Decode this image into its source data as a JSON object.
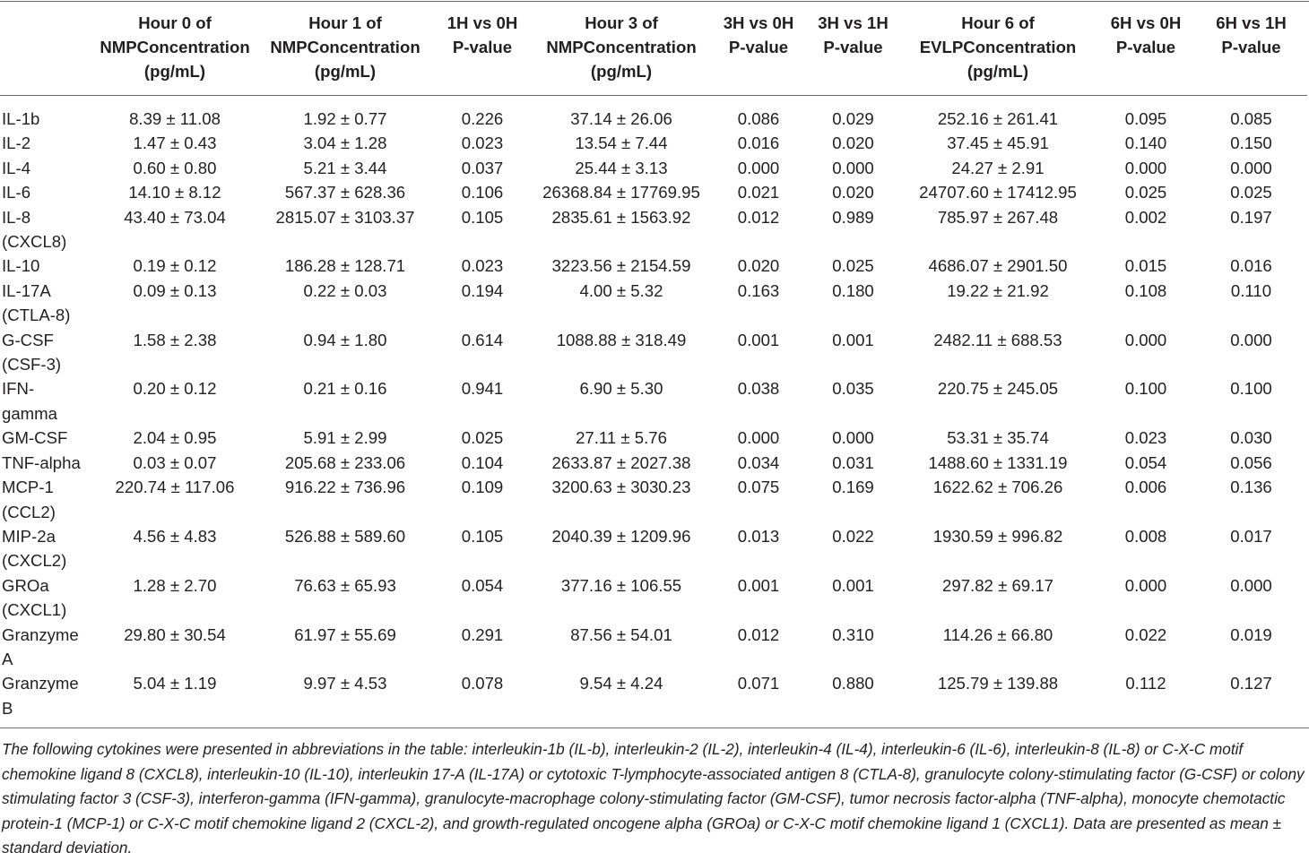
{
  "table": {
    "columns": [
      {
        "line1": "",
        "line2": "",
        "line3": ""
      },
      {
        "line1": "Hour 0 of",
        "line2": "NMPConcentration",
        "line3": "(pg/mL)"
      },
      {
        "line1": "Hour 1 of",
        "line2": "NMPConcentration",
        "line3": "(pg/mL)"
      },
      {
        "line1": "1H vs 0H",
        "line2": "P-value",
        "line3": ""
      },
      {
        "line1": "Hour 3 of",
        "line2": "NMPConcentration",
        "line3": "(pg/mL)"
      },
      {
        "line1": "3H vs 0H",
        "line2": "P-value",
        "line3": ""
      },
      {
        "line1": "3H vs 1H",
        "line2": "P-value",
        "line3": ""
      },
      {
        "line1": "Hour 6 of",
        "line2": "EVLPConcentration",
        "line3": "(pg/mL)"
      },
      {
        "line1": "6H vs 0H",
        "line2": "P-value",
        "line3": ""
      },
      {
        "line1": "6H vs 1H",
        "line2": "P-value",
        "line3": ""
      }
    ],
    "rows": [
      {
        "name": "IL-1b",
        "h0": "8.39 ± 11.08",
        "h1": "1.92 ± 0.77",
        "p1v0": "0.226",
        "h3": "37.14 ± 26.06",
        "p3v0": "0.086",
        "p3v1": "0.029",
        "h6": "252.16 ± 261.41",
        "p6v0": "0.095",
        "p6v1": "0.085"
      },
      {
        "name": "IL-2",
        "h0": "1.47 ± 0.43",
        "h1": "3.04 ± 1.28",
        "p1v0": "0.023",
        "h3": "13.54 ± 7.44",
        "p3v0": "0.016",
        "p3v1": "0.020",
        "h6": "37.45 ± 45.91",
        "p6v0": "0.140",
        "p6v1": "0.150"
      },
      {
        "name": "IL-4",
        "h0": "0.60 ± 0.80",
        "h1": "5.21 ± 3.44",
        "p1v0": "0.037",
        "h3": "25.44 ± 3.13",
        "p3v0": "0.000",
        "p3v1": "0.000",
        "h6": "24.27 ± 2.91",
        "p6v0": "0.000",
        "p6v1": "0.000"
      },
      {
        "name": "IL-6",
        "h0": "14.10 ± 8.12",
        "h1": "567.37 ± 628.36",
        "p1v0": "0.106",
        "h3": "26368.84 ± 17769.95",
        "p3v0": "0.021",
        "p3v1": "0.020",
        "h6": "24707.60 ± 17412.95",
        "p6v0": "0.025",
        "p6v1": "0.025"
      },
      {
        "name": "IL-8 (CXCL8)",
        "h0": "43.40 ± 73.04",
        "h1": "2815.07 ± 3103.37",
        "p1v0": "0.105",
        "h3": "2835.61 ± 1563.92",
        "p3v0": "0.012",
        "p3v1": "0.989",
        "h6": "785.97 ± 267.48",
        "p6v0": "0.002",
        "p6v1": "0.197"
      },
      {
        "name": "IL-10",
        "h0": "0.19 ± 0.12",
        "h1": "186.28 ± 128.71",
        "p1v0": "0.023",
        "h3": "3223.56 ± 2154.59",
        "p3v0": "0.020",
        "p3v1": "0.025",
        "h6": "4686.07 ± 2901.50",
        "p6v0": "0.015",
        "p6v1": "0.016"
      },
      {
        "name": "IL-17A (CTLA-8)",
        "h0": "0.09 ± 0.13",
        "h1": "0.22 ± 0.03",
        "p1v0": "0.194",
        "h3": "4.00 ± 5.32",
        "p3v0": "0.163",
        "p3v1": "0.180",
        "h6": "19.22 ± 21.92",
        "p6v0": "0.108",
        "p6v1": "0.110"
      },
      {
        "name": "G-CSF (CSF-3)",
        "h0": "1.58 ± 2.38",
        "h1": "0.94 ± 1.80",
        "p1v0": "0.614",
        "h3": "1088.88 ± 318.49",
        "p3v0": "0.001",
        "p3v1": "0.001",
        "h6": "2482.11 ± 688.53",
        "p6v0": "0.000",
        "p6v1": "0.000"
      },
      {
        "name": "IFN- gamma",
        "h0": "0.20 ± 0.12",
        "h1": "0.21 ± 0.16",
        "p1v0": "0.941",
        "h3": "6.90 ± 5.30",
        "p3v0": "0.038",
        "p3v1": "0.035",
        "h6": "220.75 ± 245.05",
        "p6v0": "0.100",
        "p6v1": "0.100"
      },
      {
        "name": "GM-CSF",
        "h0": "2.04 ± 0.95",
        "h1": "5.91 ± 2.99",
        "p1v0": "0.025",
        "h3": "27.11 ± 5.76",
        "p3v0": "0.000",
        "p3v1": "0.000",
        "h6": "53.31 ± 35.74",
        "p6v0": "0.023",
        "p6v1": "0.030"
      },
      {
        "name": "TNF-alpha",
        "h0": "0.03 ± 0.07",
        "h1": "205.68 ± 233.06",
        "p1v0": "0.104",
        "h3": "2633.87 ± 2027.38",
        "p3v0": "0.034",
        "p3v1": "0.031",
        "h6": "1488.60 ± 1331.19",
        "p6v0": "0.054",
        "p6v1": "0.056"
      },
      {
        "name": "MCP-1 (CCL2)",
        "h0": "220.74 ± 117.06",
        "h1": "916.22 ± 736.96",
        "p1v0": "0.109",
        "h3": "3200.63 ± 3030.23",
        "p3v0": "0.075",
        "p3v1": "0.169",
        "h6": "1622.62 ± 706.26",
        "p6v0": "0.006",
        "p6v1": "0.136"
      },
      {
        "name": "MIP-2a (CXCL2)",
        "h0": "4.56 ± 4.83",
        "h1": "526.88 ± 589.60",
        "p1v0": "0.105",
        "h3": "2040.39 ± 1209.96",
        "p3v0": "0.013",
        "p3v1": "0.022",
        "h6": "1930.59 ± 996.82",
        "p6v0": "0.008",
        "p6v1": "0.017"
      },
      {
        "name": "GROa (CXCL1)",
        "h0": "1.28 ± 2.70",
        "h1": "76.63 ± 65.93",
        "p1v0": "0.054",
        "h3": "377.16 ± 106.55",
        "p3v0": "0.001",
        "p3v1": "0.001",
        "h6": "297.82 ± 69.17",
        "p6v0": "0.000",
        "p6v1": "0.000"
      },
      {
        "name": "Granzyme A",
        "h0": "29.80 ± 30.54",
        "h1": "61.97 ± 55.69",
        "p1v0": "0.291",
        "h3": "87.56 ± 54.01",
        "p3v0": "0.012",
        "p3v1": "0.310",
        "h6": "114.26 ± 66.80",
        "p6v0": "0.022",
        "p6v1": "0.019"
      },
      {
        "name": "Granzyme B",
        "h0": "5.04 ± 1.19",
        "h1": "9.97 ± 4.53",
        "p1v0": "0.078",
        "h3": "9.54 ± 4.24",
        "p3v0": "0.071",
        "p3v1": "0.880",
        "h6": "125.79 ± 139.88",
        "p6v0": "0.112",
        "p6v1": "0.127"
      }
    ]
  },
  "footnote": "The following cytokines were presented in abbreviations in the table: interleukin-1b (IL-b), interleukin-2 (IL-2), interleukin-4 (IL-4), interleukin-6 (IL-6), interleukin-8 (IL-8) or C-X-C motif chemokine ligand 8 (CXCL8), interleukin-10 (IL-10), interleukin 17-A (IL-17A) or cytotoxic T-lymphocyte-associated antigen 8 (CTLA-8), granulocyte colony-stimulating factor (G-CSF) or colony stimulating factor 3 (CSF-3), interferon-gamma (IFN-gamma), granulocyte-macrophage colony-stimulating factor (GM-CSF), tumor necrosis factor-alpha (TNF-alpha), monocyte chemotactic protein-1 (MCP-1) or C-X-C motif chemokine ligand 2 (CXCL-2), and growth-regulated oncogene alpha (GROa) or C-X-C motif chemokine ligand 1 (CXCL1). Data are presented as mean ± standard deviation."
}
